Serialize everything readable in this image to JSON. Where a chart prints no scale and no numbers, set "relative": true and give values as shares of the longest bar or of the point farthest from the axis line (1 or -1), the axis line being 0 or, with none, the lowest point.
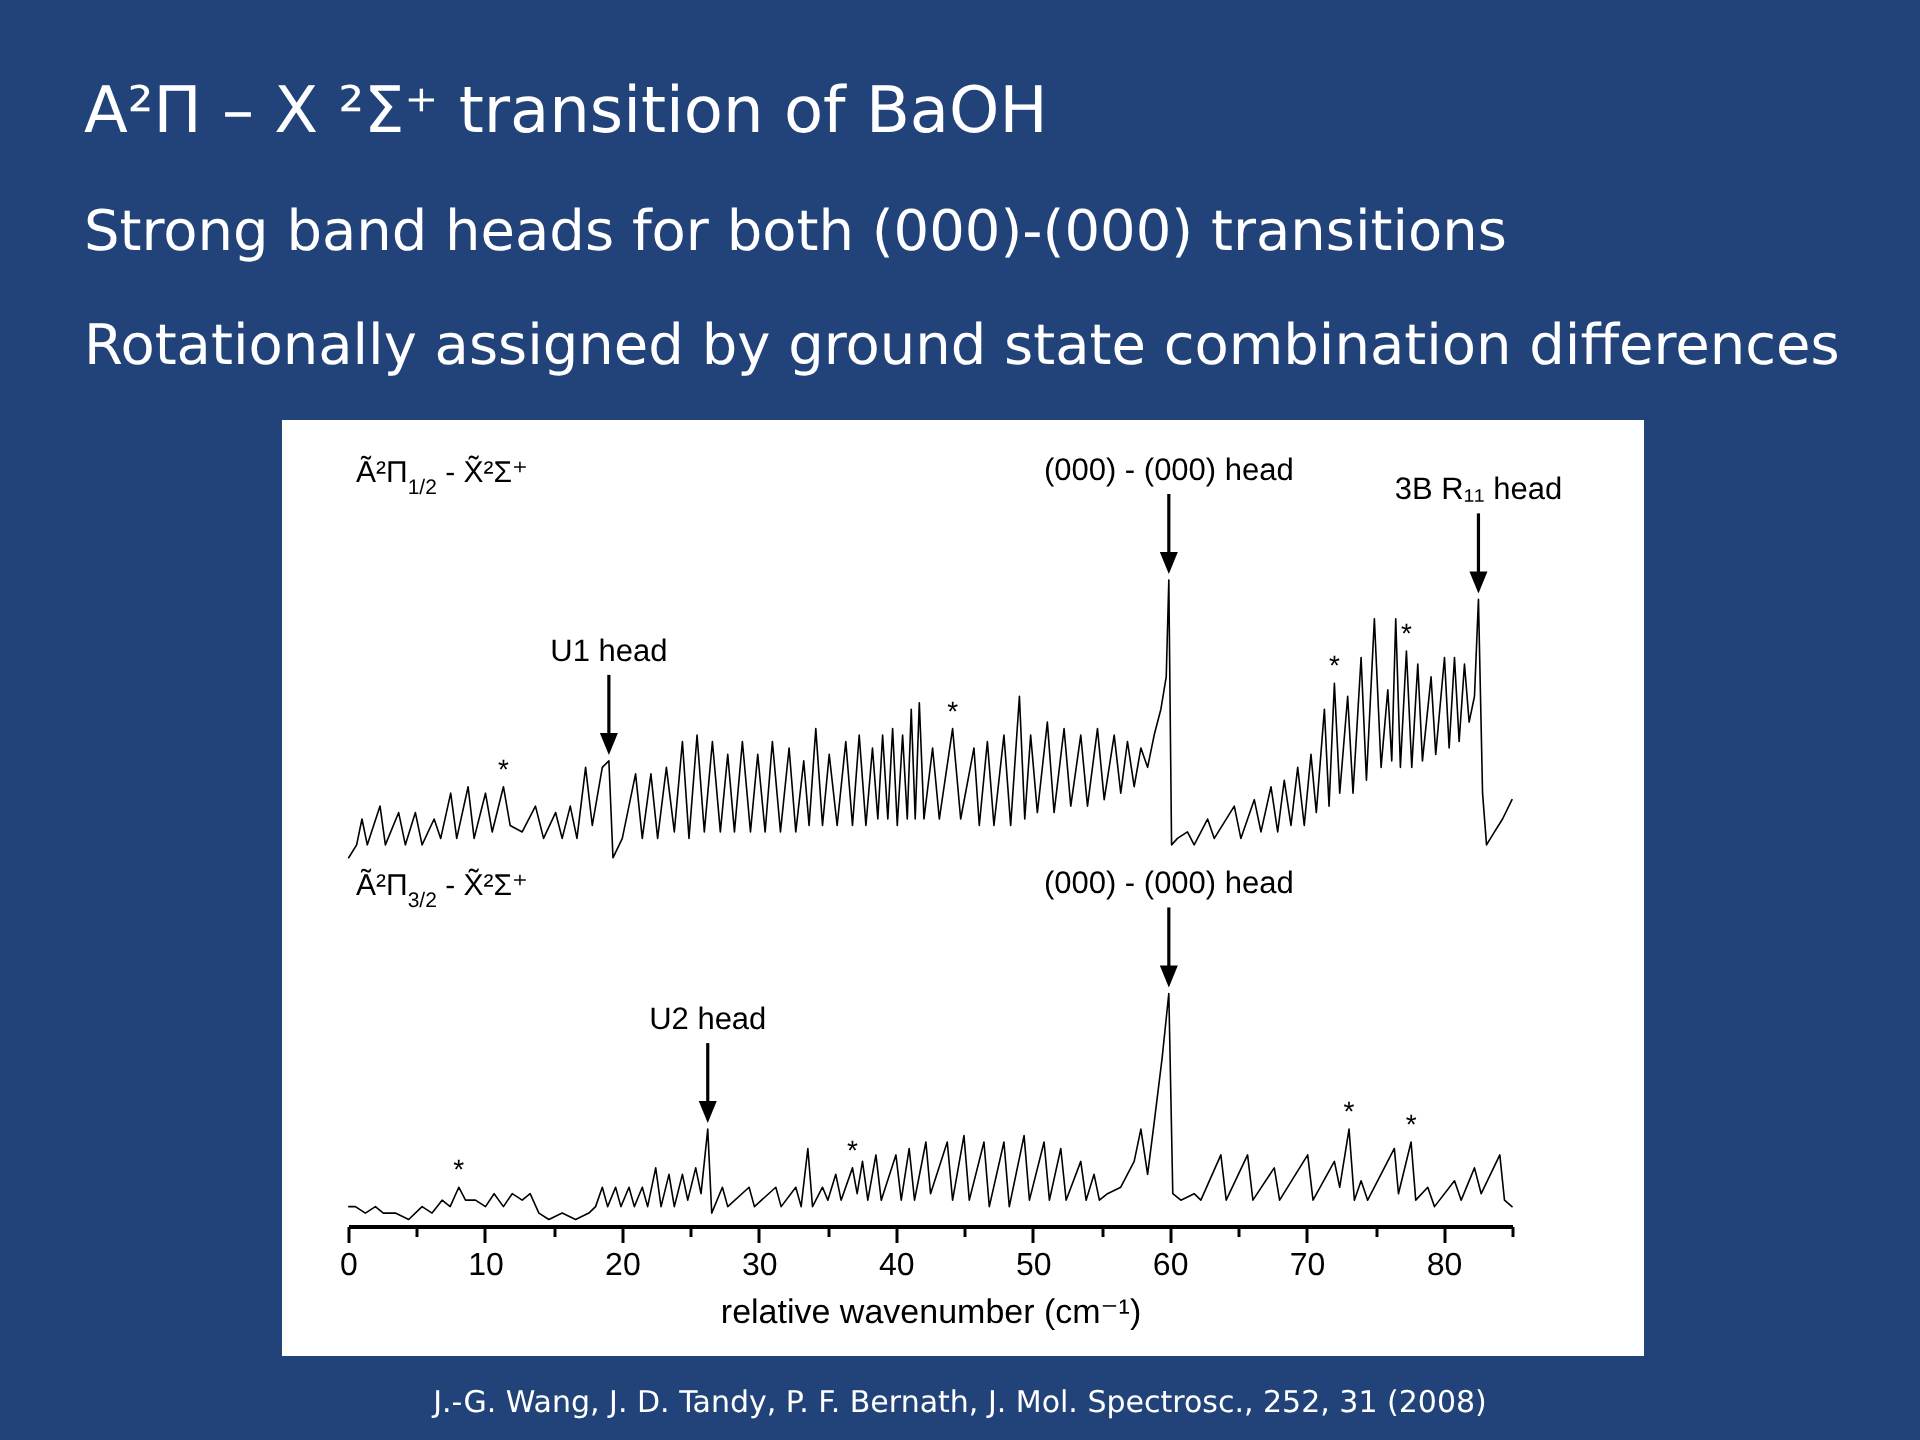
{
  "chart_data": {
    "type": "line",
    "title": "A²Π – X ²Σ⁺ transition of BaOH",
    "subtitle": "Strong band heads for both (000)-(000) transitions\nRotationally assigned by ground state combination differences",
    "relative": true,
    "xlim": [
      0,
      85
    ],
    "xticks": [
      0,
      {
        "value": 5,
        "label": null
      },
      10,
      {
        "value": 15,
        "label": null
      },
      20,
      {
        "value": 25,
        "label": null
      },
      30,
      {
        "value": 35,
        "label": null
      },
      40,
      {
        "value": 45,
        "label": null
      },
      50,
      {
        "value": 55,
        "label": null
      },
      60,
      {
        "value": 65,
        "label": null
      },
      70,
      {
        "value": 75,
        "label": null
      },
      80,
      {
        "value": 85,
        "label": null
      }
    ],
    "xlabel": "relative wavenumber (cm⁻¹)",
    "annotations": [
      {
        "text": "U1 head",
        "x": 19.05,
        "y": 0.72
      },
      {
        "text": "(000) - (000) head",
        "x": 59.94,
        "y": 1
      },
      {
        "text": "3B R₁₁ head",
        "x": 82.55,
        "y": 0.97
      },
      {
        "text": "*",
        "x": 11.35,
        "y": 0.68
      },
      {
        "text": "*",
        "x": 44.15,
        "y": 0.77
      },
      {
        "text": "*",
        "x": 72.03,
        "y": 0.84
      },
      {
        "text": "*",
        "x": 77.29,
        "y": 0.89
      },
      {
        "text": "U2 head",
        "x": 26.27,
        "y": 0.15
      },
      {
        "text": "(000) - (000) head",
        "x": 59.94,
        "y": 0.36
      },
      {
        "text": "*",
        "x": 8.09,
        "y": 0.06
      },
      {
        "text": "*",
        "x": 36.84,
        "y": 0.09
      },
      {
        "text": "*",
        "x": 73.1,
        "y": 0.15
      },
      {
        "text": "*",
        "x": 77.63,
        "y": 0.13
      },
      "Ã²Π$_{1/2}$ - X̃²Σ⁺",
      "Ã²Π$_{3/2}$ - X̃²Σ⁺",
      "J.-G. Wang, J. D. Tandy, P. F. Bernath, J. Mol. Spectrosc., 252, 31 (2008)"
    ],
    "series": [
      {
        "color": "#000000",
        "x": [
          0.05,
          0.63,
          1.02,
          1.41,
          2.34,
          2.73,
          3.7,
          4.19,
          4.92,
          5.41,
          6.29,
          6.77,
          7.5,
          7.94,
          8.77,
          9.21,
          10.04,
          10.53,
          11.35,
          11.84,
          12.72,
          13.69,
          14.28,
          15.16,
          15.64,
          16.23,
          16.72,
          17.35,
          17.84,
          18.57,
          19.05,
          19.35,
          20.03,
          21,
          21.49,
          22.12,
          22.61,
          23.25,
          23.83,
          24.42,
          24.9,
          25.49,
          26.02,
          26.61,
          27.19,
          27.73,
          28.22,
          28.8,
          29.39,
          29.92,
          30.46,
          30.99,
          31.58,
          32.21,
          32.7,
          33.28,
          33.67,
          34.16,
          34.65,
          35.14,
          35.72,
          36.35,
          36.84,
          37.33,
          37.82,
          38.3,
          38.69,
          39.04,
          39.42,
          39.77,
          40.11,
          40.5,
          40.84,
          41.13,
          41.42,
          41.72,
          42.06,
          42.69,
          43.18,
          44.15,
          44.74,
          45.71,
          46.1,
          46.69,
          47.17,
          47.9,
          48.39,
          49.03,
          49.42,
          49.85,
          50.34,
          51.07,
          51.56,
          52.29,
          52.78,
          53.51,
          54,
          54.73,
          55.22,
          55.95,
          56.43,
          56.92,
          57.41,
          57.9,
          58.39,
          58.87,
          59.36,
          59.75,
          59.94,
          60.14,
          60.57,
          61.3,
          61.79,
          62.77,
          63.26,
          64.72,
          65.2,
          66.18,
          66.67,
          67.4,
          67.89,
          68.37,
          68.86,
          69.35,
          69.83,
          70.32,
          70.71,
          71.3,
          71.64,
          72.03,
          72.42,
          73,
          73.39,
          73.98,
          74.37,
          74.95,
          75.44,
          75.93,
          76.22,
          76.51,
          76.85,
          77.29,
          77.68,
          78.12,
          78.46,
          79.09,
          79.43,
          80.07,
          80.41,
          80.8,
          81.14,
          81.53,
          81.87,
          82.26,
          82.55,
          82.85,
          83.14,
          83.72,
          84.31,
          85
        ],
        "values": [
          0.57,
          0.59,
          0.63,
          0.59,
          0.65,
          0.59,
          0.64,
          0.59,
          0.64,
          0.59,
          0.63,
          0.6,
          0.67,
          0.6,
          0.68,
          0.6,
          0.67,
          0.61,
          0.68,
          0.62,
          0.61,
          0.65,
          0.6,
          0.64,
          0.6,
          0.65,
          0.6,
          0.71,
          0.62,
          0.71,
          0.72,
          0.57,
          0.6,
          0.7,
          0.6,
          0.7,
          0.6,
          0.71,
          0.61,
          0.75,
          0.6,
          0.76,
          0.61,
          0.75,
          0.61,
          0.73,
          0.61,
          0.75,
          0.61,
          0.73,
          0.61,
          0.75,
          0.61,
          0.74,
          0.61,
          0.72,
          0.62,
          0.77,
          0.62,
          0.73,
          0.62,
          0.75,
          0.62,
          0.76,
          0.62,
          0.74,
          0.63,
          0.76,
          0.63,
          0.77,
          0.62,
          0.76,
          0.63,
          0.8,
          0.63,
          0.81,
          0.63,
          0.74,
          0.63,
          0.77,
          0.63,
          0.74,
          0.62,
          0.75,
          0.62,
          0.76,
          0.62,
          0.82,
          0.63,
          0.76,
          0.64,
          0.78,
          0.64,
          0.77,
          0.65,
          0.76,
          0.65,
          0.77,
          0.66,
          0.76,
          0.67,
          0.75,
          0.68,
          0.74,
          0.71,
          0.76,
          0.8,
          0.85,
          1,
          0.59,
          0.6,
          0.61,
          0.59,
          0.63,
          0.6,
          0.65,
          0.6,
          0.66,
          0.61,
          0.68,
          0.61,
          0.69,
          0.62,
          0.71,
          0.62,
          0.73,
          0.64,
          0.8,
          0.65,
          0.84,
          0.67,
          0.82,
          0.67,
          0.88,
          0.69,
          0.94,
          0.71,
          0.83,
          0.72,
          0.94,
          0.71,
          0.89,
          0.71,
          0.87,
          0.72,
          0.85,
          0.73,
          0.88,
          0.74,
          0.88,
          0.75,
          0.87,
          0.78,
          0.82,
          0.97,
          0.67,
          0.59,
          0.61,
          0.63,
          0.66
        ]
      },
      {
        "color": "#000000",
        "x": [
          0.05,
          0.54,
          1.27,
          2,
          2.58,
          3.46,
          4.43,
          5.41,
          6.14,
          6.87,
          7.46,
          8.09,
          8.58,
          9.31,
          10.04,
          10.67,
          11.35,
          11.99,
          12.72,
          13.3,
          13.94,
          14.67,
          15.64,
          16.62,
          17.59,
          18.08,
          18.57,
          18.96,
          19.54,
          19.93,
          20.52,
          20.91,
          21.49,
          21.88,
          22.47,
          22.86,
          23.44,
          23.83,
          24.42,
          24.81,
          25.39,
          25.78,
          26.27,
          26.56,
          27.34,
          27.73,
          29.29,
          29.68,
          31.24,
          31.63,
          32.7,
          33.09,
          33.58,
          33.92,
          34.65,
          35.04,
          35.62,
          36.01,
          36.84,
          37.18,
          37.57,
          37.96,
          38.55,
          38.94,
          40.01,
          40.4,
          40.98,
          41.37,
          42.2,
          42.54,
          43.76,
          44.15,
          44.98,
          45.37,
          46.44,
          46.83,
          47.9,
          48.29,
          49.37,
          49.76,
          50.83,
          51.22,
          52.05,
          52.44,
          53.51,
          53.9,
          54.48,
          54.87,
          55.46,
          56.43,
          57.41,
          57.9,
          58.39,
          58.87,
          59.45,
          59.94,
          60.23,
          60.82,
          61.79,
          62.28,
          63.74,
          64.13,
          65.69,
          66.08,
          67.64,
          68.03,
          70.08,
          70.47,
          72.03,
          72.42,
          73.1,
          73.49,
          73.98,
          74.46,
          76.41,
          76.71,
          77.63,
          77.97,
          78.85,
          79.34,
          80.8,
          81.29,
          82.26,
          82.75,
          84.11,
          84.45,
          85
        ],
        "values": [
          0.03,
          0.03,
          0.02,
          0.03,
          0.02,
          0.02,
          0.01,
          0.03,
          0.02,
          0.04,
          0.03,
          0.06,
          0.04,
          0.04,
          0.03,
          0.05,
          0.03,
          0.05,
          0.04,
          0.05,
          0.02,
          0.01,
          0.02,
          0.01,
          0.02,
          0.03,
          0.06,
          0.03,
          0.06,
          0.03,
          0.06,
          0.03,
          0.06,
          0.03,
          0.09,
          0.03,
          0.08,
          0.03,
          0.08,
          0.04,
          0.09,
          0.05,
          0.15,
          0.02,
          0.06,
          0.03,
          0.06,
          0.03,
          0.06,
          0.03,
          0.06,
          0.03,
          0.12,
          0.03,
          0.06,
          0.04,
          0.08,
          0.04,
          0.09,
          0.05,
          0.1,
          0.04,
          0.11,
          0.04,
          0.11,
          0.04,
          0.12,
          0.04,
          0.13,
          0.05,
          0.13,
          0.04,
          0.14,
          0.04,
          0.13,
          0.03,
          0.13,
          0.03,
          0.14,
          0.04,
          0.13,
          0.04,
          0.12,
          0.04,
          0.1,
          0.04,
          0.08,
          0.04,
          0.05,
          0.06,
          0.1,
          0.15,
          0.08,
          0.16,
          0.26,
          0.36,
          0.05,
          0.04,
          0.05,
          0.04,
          0.11,
          0.04,
          0.11,
          0.04,
          0.09,
          0.04,
          0.11,
          0.04,
          0.1,
          0.06,
          0.15,
          0.04,
          0.07,
          0.04,
          0.12,
          0.05,
          0.13,
          0.04,
          0.06,
          0.03,
          0.07,
          0.04,
          0.09,
          0.05,
          0.11,
          0.04,
          0.03
        ]
      }
    ]
  }
}
